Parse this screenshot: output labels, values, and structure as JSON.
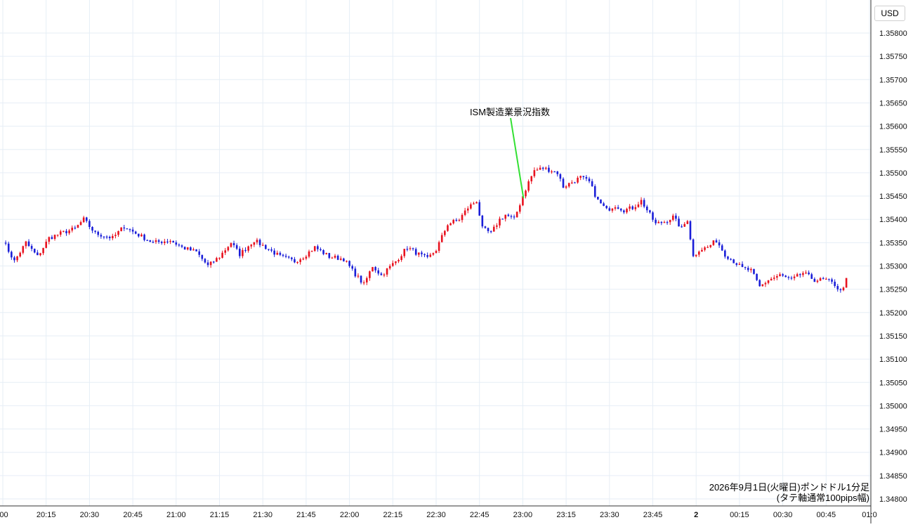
{
  "chart_data": {
    "type": "candlestick",
    "currency": "USD",
    "y_range": [
      1.348,
      1.358
    ],
    "y_ticks": [
      "1.35800",
      "1.35750",
      "1.35700",
      "1.35650",
      "1.35600",
      "1.35550",
      "1.35500",
      "1.35450",
      "1.35400",
      "1.35350",
      "1.35300",
      "1.35250",
      "1.35200",
      "1.35150",
      "1.35100",
      "1.35050",
      "1.35000",
      "1.34950",
      "1.34900",
      "1.34850",
      "1.34800"
    ],
    "x_ticks": [
      ":00",
      "20:15",
      "20:30",
      "20:45",
      "21:00",
      "21:15",
      "21:30",
      "21:45",
      "22:00",
      "22:15",
      "22:30",
      "22:45",
      "23:00",
      "23:15",
      "23:30",
      "23:45",
      "2",
      "00:15",
      "00:30",
      "00:45",
      "01:0"
    ],
    "grid": true,
    "up_color": "#e8121f",
    "down_color": "#1a1ed8",
    "annotation": {
      "text": "ISM製造業景況指数",
      "time_index": 12,
      "line_color": "#33e033"
    },
    "caption": [
      "2026年9月1日(火曜日)ポンドドル1分足",
      "(タテ軸通常100pips幅)"
    ],
    "price_path": [
      [
        0,
        1.35355
      ],
      [
        4,
        1.3531
      ],
      [
        8,
        1.3535
      ],
      [
        12,
        1.3532
      ],
      [
        16,
        1.3536
      ],
      [
        20,
        1.3537
      ],
      [
        25,
        1.3538
      ],
      [
        28,
        1.354
      ],
      [
        32,
        1.3537
      ],
      [
        38,
        1.3536
      ],
      [
        42,
        1.35385
      ],
      [
        46,
        1.3537
      ],
      [
        52,
        1.3535
      ],
      [
        58,
        1.35355
      ],
      [
        62,
        1.3534
      ],
      [
        67,
        1.3533
      ],
      [
        71,
        1.353
      ],
      [
        75,
        1.3532
      ],
      [
        79,
        1.3535
      ],
      [
        82,
        1.35325
      ],
      [
        87,
        1.35355
      ],
      [
        91,
        1.3534
      ],
      [
        96,
        1.3532
      ],
      [
        101,
        1.3531
      ],
      [
        104,
        1.3532
      ],
      [
        108,
        1.3534
      ],
      [
        113,
        1.3532
      ],
      [
        118,
        1.35315
      ],
      [
        121,
        1.3529
      ],
      [
        125,
        1.3526
      ],
      [
        128,
        1.353
      ],
      [
        131,
        1.3528
      ],
      [
        136,
        1.3531
      ],
      [
        140,
        1.3534
      ],
      [
        144,
        1.35325
      ],
      [
        147,
        1.35315
      ],
      [
        150,
        1.35335
      ],
      [
        154,
        1.3539
      ],
      [
        158,
        1.354
      ],
      [
        161,
        1.35425
      ],
      [
        164,
        1.3544
      ],
      [
        166,
        1.3538
      ],
      [
        169,
        1.3537
      ],
      [
        172,
        1.354
      ],
      [
        174,
        1.3541
      ],
      [
        177,
        1.354
      ],
      [
        180,
        1.3545
      ],
      [
        182,
        1.3548
      ],
      [
        184,
        1.35505
      ],
      [
        187,
        1.3551
      ],
      [
        190,
        1.35505
      ],
      [
        192,
        1.355
      ],
      [
        194,
        1.3547
      ],
      [
        197,
        1.3548
      ],
      [
        200,
        1.3549
      ],
      [
        203,
        1.3548
      ],
      [
        206,
        1.3544
      ],
      [
        209,
        1.3542
      ],
      [
        212,
        1.3543
      ],
      [
        215,
        1.3542
      ],
      [
        218,
        1.35425
      ],
      [
        221,
        1.3544
      ],
      [
        223,
        1.3542
      ],
      [
        226,
        1.3539
      ],
      [
        229,
        1.35395
      ],
      [
        232,
        1.35405
      ],
      [
        235,
        1.3538
      ],
      [
        237,
        1.354
      ],
      [
        239,
        1.3532
      ],
      [
        241,
        1.35335
      ],
      [
        244,
        1.3534
      ],
      [
        247,
        1.35355
      ],
      [
        250,
        1.35325
      ],
      [
        253,
        1.3531
      ],
      [
        256,
        1.35295
      ],
      [
        259,
        1.3529
      ],
      [
        262,
        1.35255
      ],
      [
        265,
        1.3527
      ],
      [
        269,
        1.3528
      ],
      [
        273,
        1.3527
      ],
      [
        277,
        1.35285
      ],
      [
        281,
        1.3527
      ],
      [
        285,
        1.3527
      ],
      [
        288,
        1.3526
      ],
      [
        290,
        1.35245
      ],
      [
        292,
        1.3527
      ]
    ]
  }
}
